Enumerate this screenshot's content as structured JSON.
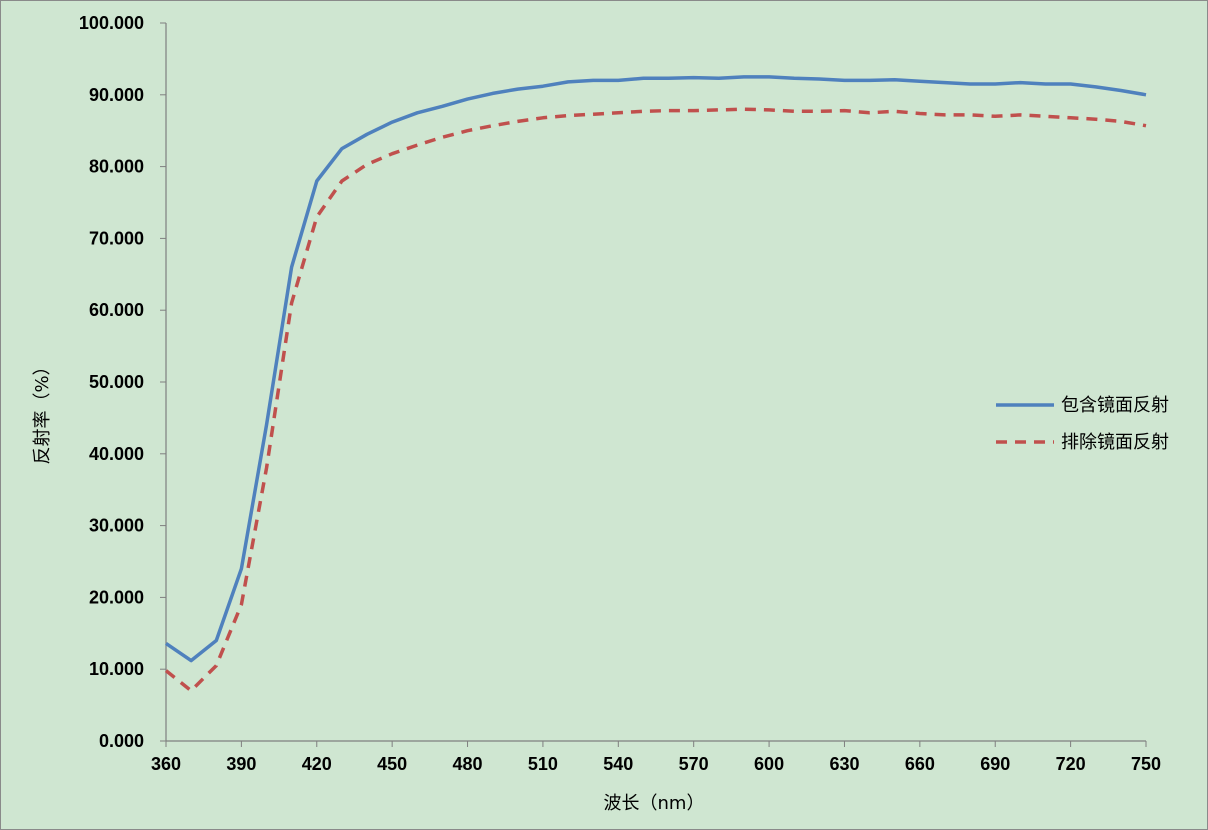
{
  "chart_data": {
    "type": "line",
    "xlabel": "波长（nm）",
    "ylabel": "反射率（%）",
    "xlim": [
      360,
      750
    ],
    "ylim": [
      0,
      100
    ],
    "x_ticks": [
      "360",
      "390",
      "420",
      "450",
      "480",
      "510",
      "540",
      "570",
      "600",
      "630",
      "660",
      "690",
      "720",
      "750"
    ],
    "y_ticks": [
      "0.000",
      "10.000",
      "20.000",
      "30.000",
      "40.000",
      "50.000",
      "60.000",
      "70.000",
      "80.000",
      "90.000",
      "100.000"
    ],
    "legend_position": "right",
    "x": [
      360,
      370,
      380,
      390,
      400,
      410,
      420,
      430,
      440,
      450,
      460,
      470,
      480,
      490,
      500,
      510,
      520,
      530,
      540,
      550,
      560,
      570,
      580,
      590,
      600,
      610,
      620,
      630,
      640,
      650,
      660,
      670,
      680,
      690,
      700,
      710,
      720,
      730,
      740,
      750
    ],
    "series": [
      {
        "name": "包含镜面反射",
        "color": "#4f81bd",
        "style": "solid",
        "values": [
          13.6,
          11.2,
          14.0,
          24.0,
          44.0,
          66.0,
          78.0,
          82.5,
          84.5,
          86.2,
          87.5,
          88.4,
          89.4,
          90.2,
          90.8,
          91.2,
          91.8,
          92.0,
          92.0,
          92.3,
          92.3,
          92.4,
          92.3,
          92.5,
          92.5,
          92.3,
          92.2,
          92.0,
          92.0,
          92.1,
          91.9,
          91.7,
          91.5,
          91.5,
          91.7,
          91.5,
          91.5,
          91.1,
          90.6,
          90.0
        ]
      },
      {
        "name": "排除镜面反射",
        "color": "#c0504d",
        "style": "dashed",
        "values": [
          9.8,
          7.0,
          10.5,
          19.0,
          38.0,
          61.0,
          73.0,
          78.0,
          80.3,
          81.8,
          83.0,
          84.1,
          85.0,
          85.7,
          86.3,
          86.8,
          87.1,
          87.3,
          87.5,
          87.7,
          87.8,
          87.8,
          87.9,
          88.0,
          87.9,
          87.7,
          87.7,
          87.8,
          87.5,
          87.7,
          87.4,
          87.2,
          87.2,
          87.0,
          87.2,
          87.0,
          86.8,
          86.6,
          86.3,
          85.7
        ]
      }
    ]
  }
}
